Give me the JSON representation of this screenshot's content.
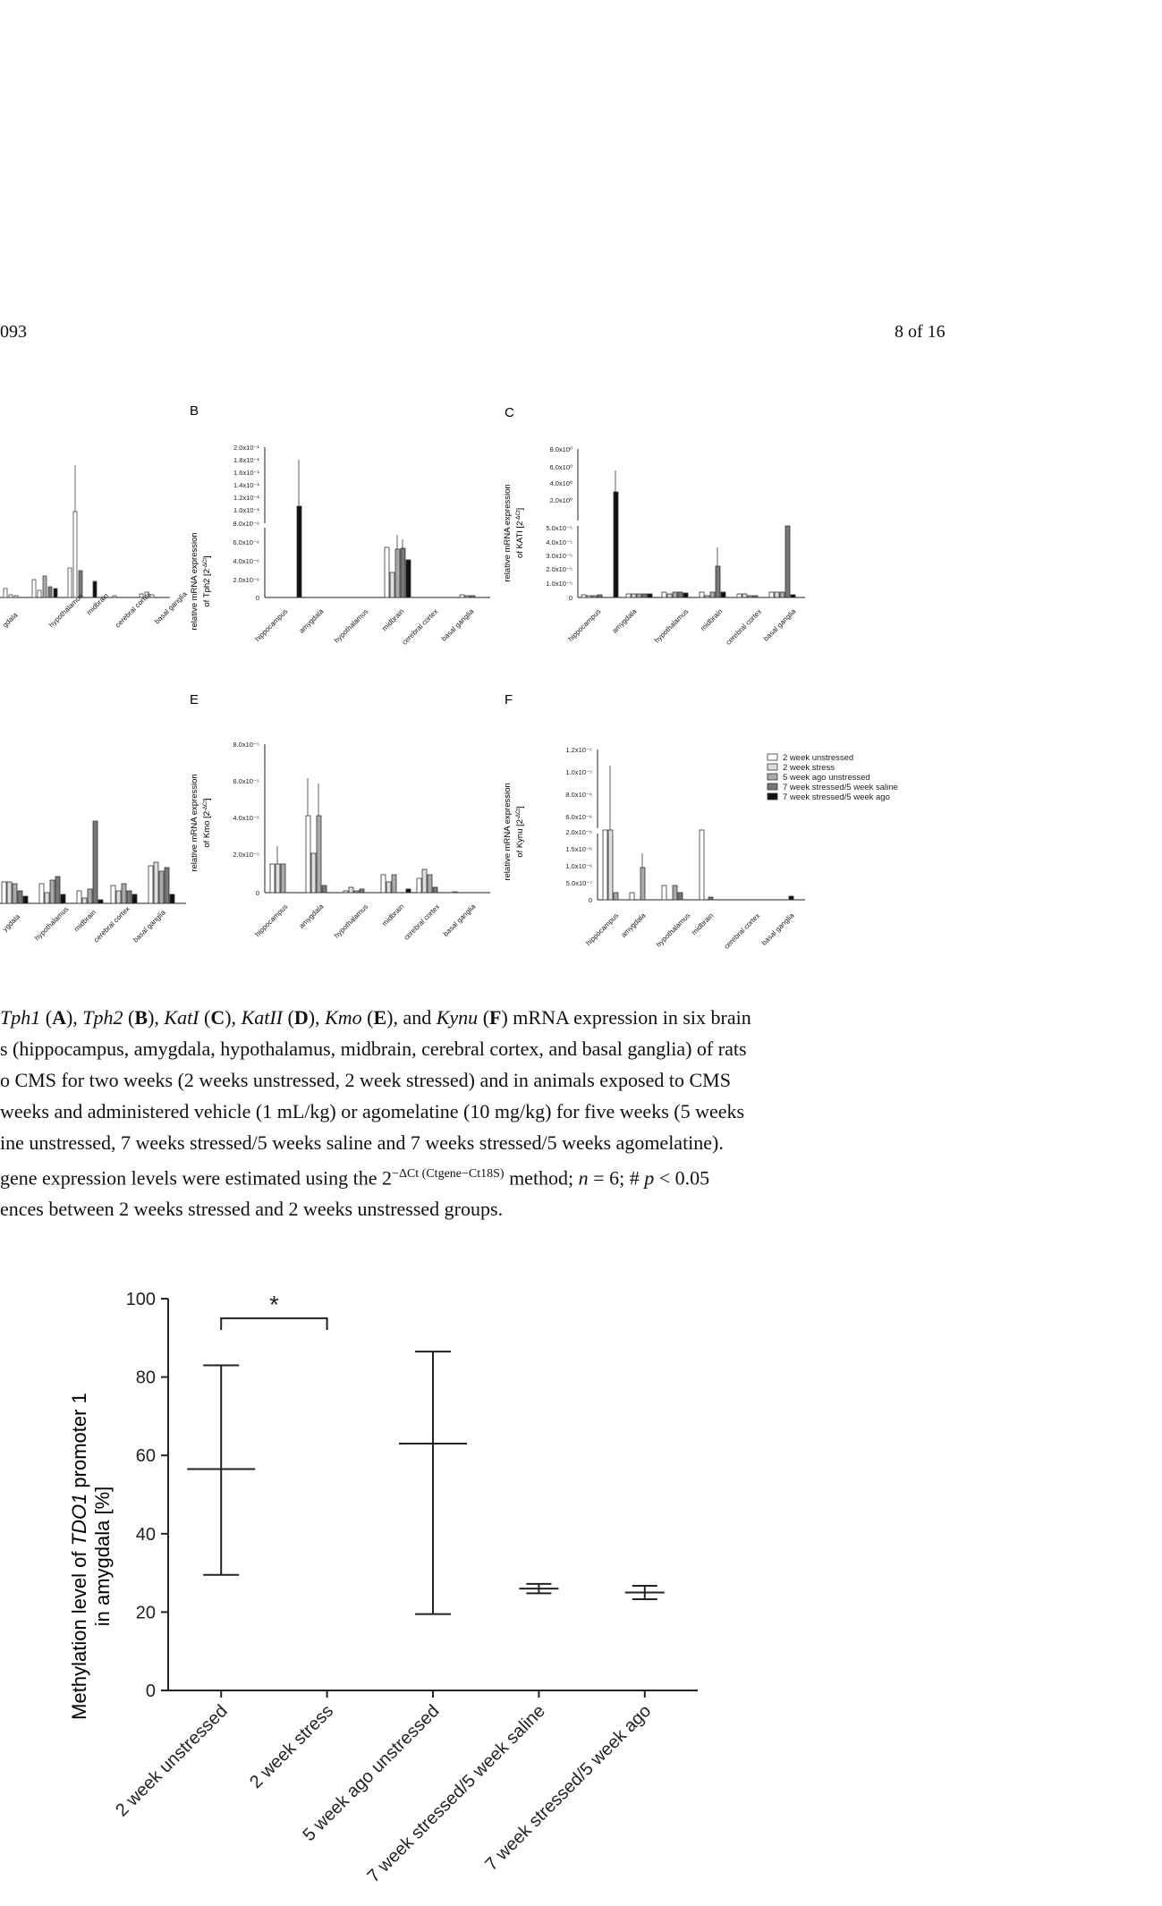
{
  "header": {
    "left": "093",
    "right": "8 of 16"
  },
  "panels": {
    "B": {
      "letter": "B",
      "ylabel1": "relative mRNA expression",
      "ylabel2": "of Tph2 [2",
      "ylabel_sup": "-ΔCt",
      "ylabel_close": "]",
      "ticks_top": [
        "2.0x10⁻¹",
        "1.8x10⁻¹",
        "1.6x10⁻¹",
        "1.4x10⁻¹",
        "1.2x10⁻¹",
        "1.0x10⁻¹"
      ],
      "ticks_bottom": [
        "8.0x10⁻⁶",
        "6.0x10⁻⁶",
        "4.0x10⁻⁶",
        "2.0x10⁻⁶",
        "0"
      ],
      "categories": [
        "hippocampus",
        "amygdala",
        "hypothalamus",
        "midbrain",
        "cerebral cortex",
        "basal ganglia"
      ]
    },
    "C": {
      "letter": "C",
      "ylabel1": "relative mRNA expression",
      "ylabel2": "of KATI [2",
      "ylabel_sup": "-ΔCt",
      "ylabel_close": "]",
      "ticks_top": [
        "8.0x10⁰",
        "6.0x10⁰",
        "4.0x10⁰",
        "2.0x10⁰"
      ],
      "ticks_bottom": [
        "5.0x10⁻⁵",
        "4.0x10⁻⁵",
        "3.0x10⁻⁵",
        "2.0x10⁻⁵",
        "1.0x10⁻⁵",
        "0"
      ],
      "categories": [
        "hippocampus",
        "amygdala",
        "hypothalamus",
        "midbrain",
        "cerebral cortex",
        "basal ganglia"
      ]
    },
    "E": {
      "letter": "E",
      "ylabel1": "relative mRNA expression",
      "ylabel2": "of Kmo [2",
      "ylabel_sup": "-ΔCt",
      "ylabel_close": "]",
      "ticks": [
        "8.0x10⁻⁵",
        "6.0x10⁻⁵",
        "4.0x10⁻⁵",
        "2.0x10⁻⁵",
        "0"
      ],
      "categories": [
        "hippocampus",
        "amygdala",
        "hypothalamus",
        "midbrain",
        "cerebral cortex",
        "basal ganglia"
      ]
    },
    "F": {
      "letter": "F",
      "ylabel1": "relative mRNA expression",
      "ylabel2": "of Kynu [2",
      "ylabel_sup": "-ΔCt",
      "ylabel_close": "]",
      "ticks_top": [
        "1.2x10⁻⁵",
        "1.0x10⁻⁵",
        "8.0x10⁻⁶",
        "6.0x10⁻⁶"
      ],
      "ticks_bottom": [
        "2.0x10⁻⁶",
        "1.5x10⁻⁶",
        "1.0x10⁻⁶",
        "5.0x10⁻⁷",
        "0"
      ],
      "categories": [
        "hippocampus",
        "amygdala",
        "hypothalamus",
        "midbrain",
        "cerebral cortex",
        "basal ganglia"
      ]
    },
    "partialA": {
      "categories": [
        "gdala",
        "hypothalamus",
        "midbrain",
        "cerebral cortex",
        "basal ganglia"
      ]
    },
    "partialD": {
      "categories": [
        "ygdala",
        "hypothalamus",
        "midbrain",
        "cerebral cortex",
        "basal ganglia"
      ]
    },
    "legend": [
      "2 week unstressed",
      "2 week stress",
      "5 week ago unstressed",
      "7 week stressed/5 week saline",
      "7 week stressed/5 week ago"
    ]
  },
  "caption": {
    "l1": {
      "a": "Tph1",
      "b": " (",
      "c": "A",
      "d": "), ",
      "e": "Tph2",
      "f": " (",
      "g": "B",
      "h": "), ",
      "i": "KatI",
      "j": " (",
      "k": "C",
      "l": "), ",
      "m": "KatII",
      "n": " (",
      "o": "D",
      "p": "), ",
      "q": "Kmo",
      "r": " (",
      "s": "E",
      "t": "), and ",
      "u": "Kynu",
      "v": " (",
      "w": "F",
      "x": ") mRNA expression in six brain"
    },
    "l2": "s (hippocampus, amygdala, hypothalamus, midbrain, cerebral cortex, and basal ganglia) of rats",
    "l3": "o CMS for two weeks (2 weeks unstressed, 2 week stressed) and in animals exposed to CMS",
    "l4": "weeks and administered vehicle (1 mL/kg) or agomelatine (10 mg/kg) for five weeks (5 weeks",
    "l5": "ine unstressed, 7 weeks stressed/5 weeks saline and 7 weeks stressed/5 weeks agomelatine).",
    "l6": {
      "a": "gene expression levels were estimated using the 2",
      "sup": "−ΔCt (Ctgene−Ct18S)",
      "b": " method; ",
      "n": "n",
      "c": " = 6; # ",
      "p": "p",
      "d": " < 0.05"
    },
    "l7": "ences between 2 weeks stressed and 2 weeks unstressed groups."
  },
  "chart_data": {
    "type": "scatter",
    "ylabel_a": "Methylation level of ",
    "ylabel_gene": "TDO1",
    "ylabel_b": " promoter 1",
    "ylabel_line2": "in amygdala [%]",
    "ylim": [
      0,
      100
    ],
    "yticks": [
      "0",
      "20",
      "40",
      "60",
      "80",
      "100"
    ],
    "categories": [
      "2 week unstressed",
      "2 week stress",
      "5 week ago unstressed",
      "7 week stressed/5 week saline",
      "7 week stressed/5 week ago"
    ],
    "series": [
      {
        "values": [
          {
            "mean": 56.5,
            "low": 29.5,
            "high": 83
          },
          null,
          {
            "mean": 63,
            "low": 19.5,
            "high": 86.5
          },
          {
            "mean": 26,
            "low": 24.8,
            "high": 27.2
          },
          {
            "mean": 25,
            "low": 23.3,
            "high": 26.7
          }
        ]
      }
    ],
    "annotation": "*",
    "grid": false
  }
}
